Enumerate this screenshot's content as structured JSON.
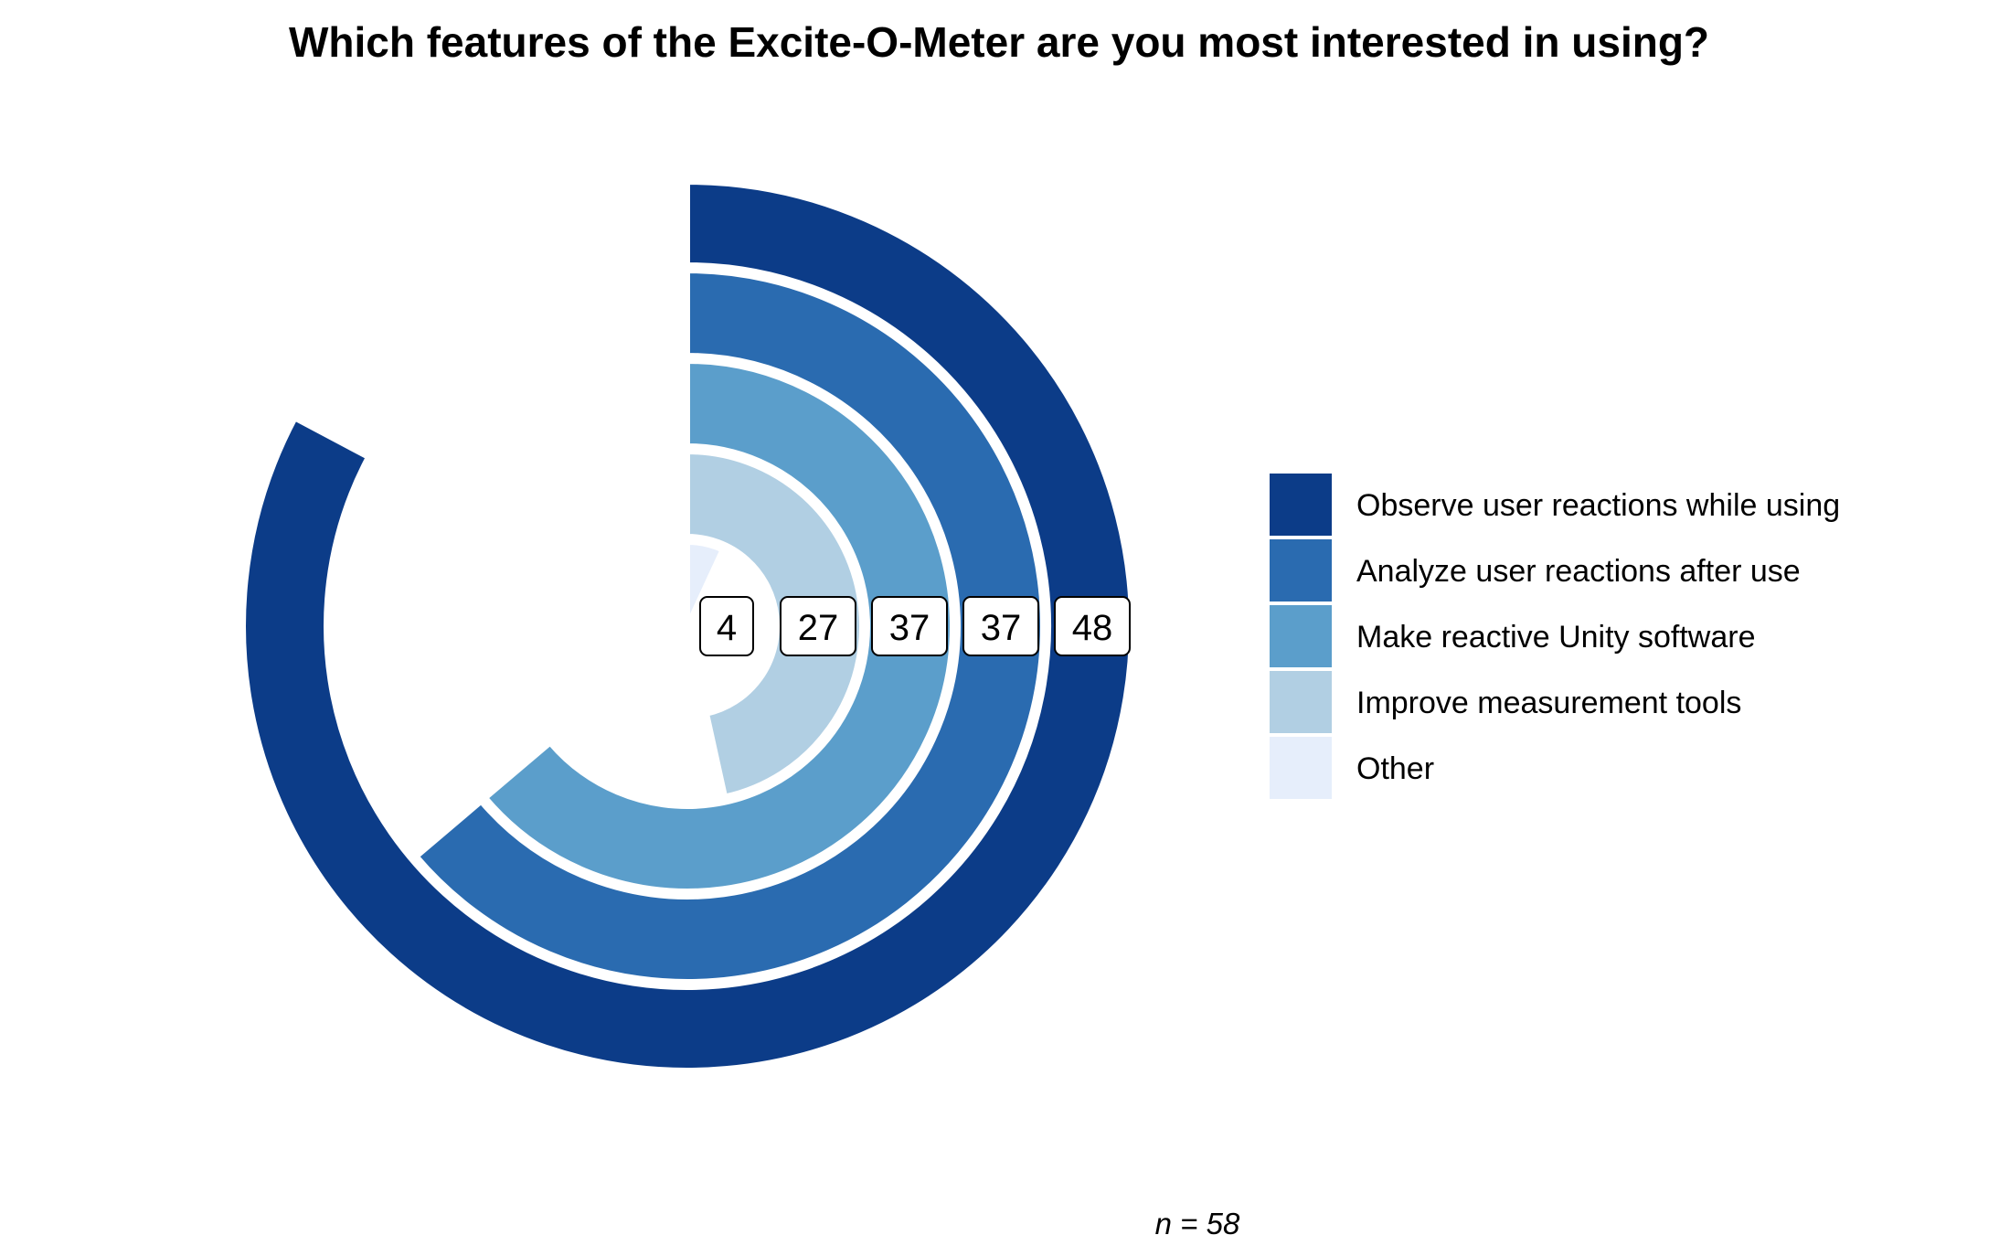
{
  "chart_data": {
    "type": "radial-bar",
    "title": "Which features of the Excite-O-Meter are you most interested in using?",
    "caption": "n = 58",
    "max": 58,
    "series": [
      {
        "name": "Observe user reactions while using",
        "value": 48,
        "color": "#0c3c88"
      },
      {
        "name": "Analyze user reactions after use",
        "value": 37,
        "color": "#2a6bb0"
      },
      {
        "name": "Make reactive Unity software",
        "value": 37,
        "color": "#5b9ecb"
      },
      {
        "name": "Improve measurement tools",
        "value": 27,
        "color": "#b1cfe3"
      },
      {
        "name": "Other",
        "value": 4,
        "color": "#e6eefb"
      }
    ],
    "legend_position": "right"
  }
}
